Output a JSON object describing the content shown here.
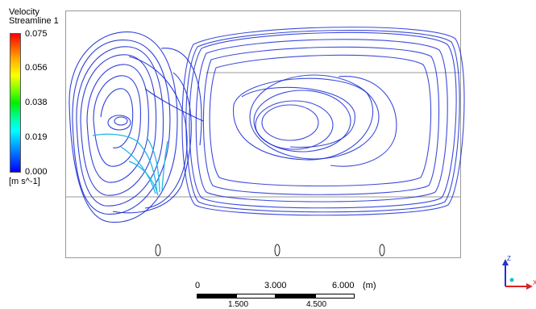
{
  "legend": {
    "title_line1": "Velocity",
    "title_line2": "Streamline 1",
    "ticks": [
      "0.075",
      "0.056",
      "0.038",
      "0.019",
      "0.000"
    ],
    "units": "[m s^-1]"
  },
  "scale": {
    "top_labels": [
      "0",
      "3.000",
      "6.000",
      "(m)"
    ],
    "bottom_labels": [
      "1.500",
      "4.500"
    ]
  },
  "axes": {
    "vertical_label": "Z",
    "horizontal_label": "X"
  },
  "colors": {
    "streamline_dark": "#1a2bd4",
    "streamline_light": "#1fb8e8",
    "frame": "#9a9a9a"
  }
}
